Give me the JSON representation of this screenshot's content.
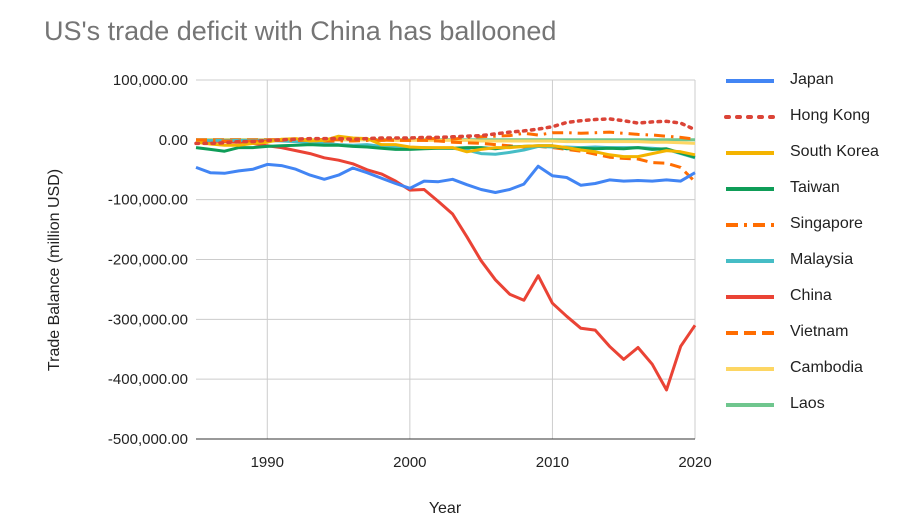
{
  "chart_data": {
    "type": "line",
    "title": "US's trade deficit with China has ballooned",
    "xlabel": "Year",
    "ylabel": "Trade Balance (million USD)",
    "xlim": [
      1985,
      2020
    ],
    "ylim": [
      -500000,
      100000
    ],
    "x_ticks": [
      1990,
      2000,
      2010,
      2020
    ],
    "x_tick_labels": [
      "1990",
      "2000",
      "2010",
      "2020"
    ],
    "y_ticks": [
      100000,
      0,
      -100000,
      -200000,
      -300000,
      -400000,
      -500000
    ],
    "y_tick_labels": [
      "100,000.00",
      "0.00",
      "-100,000.00",
      "-200,000.00",
      "-300,000.00",
      "-400,000.00",
      "-500,000.00"
    ],
    "grid": true,
    "legend_position": "right",
    "x": [
      1985,
      1986,
      1987,
      1988,
      1989,
      1990,
      1991,
      1992,
      1993,
      1994,
      1995,
      1996,
      1997,
      1998,
      1999,
      2000,
      2001,
      2002,
      2003,
      2004,
      2005,
      2006,
      2007,
      2008,
      2009,
      2010,
      2011,
      2012,
      2013,
      2014,
      2015,
      2016,
      2017,
      2018,
      2019,
      2020
    ],
    "series": [
      {
        "name": "Japan",
        "color": "#4285f4",
        "style": "solid",
        "values": [
          -46000,
          -55000,
          -56000,
          -52000,
          -49000,
          -41000,
          -43000,
          -49000,
          -59000,
          -66000,
          -59000,
          -47000,
          -55000,
          -64000,
          -73000,
          -81000,
          -69000,
          -70000,
          -66000,
          -75000,
          -83000,
          -88000,
          -83000,
          -74000,
          -44000,
          -60000,
          -63000,
          -76000,
          -73000,
          -67000,
          -69000,
          -68000,
          -69000,
          -67000,
          -69000,
          -55000
        ]
      },
      {
        "name": "Hong Kong",
        "color": "#db4437",
        "style": "dotted",
        "values": [
          -6000,
          -6000,
          -5000,
          -3000,
          -3000,
          -1000,
          0,
          1000,
          2000,
          2000,
          2000,
          1000,
          2000,
          3000,
          3000,
          3000,
          4000,
          4000,
          5000,
          6000,
          7000,
          10000,
          13000,
          15000,
          18000,
          22000,
          29000,
          32000,
          34000,
          35000,
          32000,
          28000,
          30000,
          31000,
          28000,
          17000
        ]
      },
      {
        "name": "South Korea",
        "color": "#f4b400",
        "style": "solid",
        "values": [
          -4000,
          -7000,
          -9000,
          -9000,
          -6000,
          -4000,
          1000,
          2000,
          -2000,
          -1000,
          6000,
          3000,
          2000,
          -8000,
          -8000,
          -12000,
          -13000,
          -13000,
          -13000,
          -20000,
          -16000,
          -13000,
          -13000,
          -11000,
          -10000,
          -10000,
          -13000,
          -17000,
          -20000,
          -25000,
          -28000,
          -28000,
          -23000,
          -18000,
          -20000,
          -25000
        ]
      },
      {
        "name": "Taiwan",
        "color": "#0f9d58",
        "style": "solid",
        "values": [
          -13000,
          -16000,
          -19000,
          -13000,
          -13000,
          -11000,
          -10000,
          -9000,
          -8000,
          -9000,
          -9000,
          -11000,
          -12000,
          -14000,
          -16000,
          -16000,
          -15000,
          -14000,
          -14000,
          -13000,
          -13000,
          -15000,
          -12000,
          -11000,
          -10000,
          -10000,
          -15000,
          -14000,
          -15000,
          -14000,
          -15000,
          -13000,
          -16000,
          -15000,
          -22000,
          -29000
        ]
      },
      {
        "name": "Singapore",
        "color": "#ff6d01",
        "style": "dashdot",
        "values": [
          -1000,
          -1000,
          -2000,
          -2000,
          -2000,
          -2000,
          -1000,
          -1000,
          -1000,
          -2000,
          -2000,
          -2000,
          -1000,
          -1000,
          0,
          -1000,
          2000,
          2000,
          1000,
          4000,
          5000,
          6000,
          7000,
          11000,
          8000,
          12000,
          12000,
          11000,
          12000,
          13000,
          11000,
          9000,
          8000,
          6000,
          4000,
          1000
        ]
      },
      {
        "name": "Malaysia",
        "color": "#46bdc6",
        "style": "solid",
        "values": [
          -1000,
          -1000,
          -1000,
          -1000,
          -1000,
          -1000,
          -2000,
          -3000,
          -4000,
          -6000,
          -8000,
          -9000,
          -8000,
          -11000,
          -12000,
          -15000,
          -13000,
          -14000,
          -14000,
          -17000,
          -23000,
          -24000,
          -21000,
          -17000,
          -11000,
          -12000,
          -12000,
          -13000,
          -12000,
          -13000,
          -13000,
          -13000,
          -14000,
          -16000,
          -23000,
          -30000
        ]
      },
      {
        "name": "China",
        "color": "#ea4335",
        "style": "solid",
        "values": [
          -1000,
          -2000,
          -3000,
          -4000,
          -6000,
          -10000,
          -13000,
          -18000,
          -23000,
          -30000,
          -34000,
          -40000,
          -50000,
          -57000,
          -69000,
          -84000,
          -83000,
          -103000,
          -124000,
          -162000,
          -202000,
          -234000,
          -258000,
          -268000,
          -227000,
          -273000,
          -295000,
          -315000,
          -318000,
          -345000,
          -367000,
          -347000,
          -375000,
          -418000,
          -345000,
          -310000
        ]
      },
      {
        "name": "Vietnam",
        "color": "#ff6d01",
        "style": "dashed",
        "values": [
          0,
          0,
          0,
          0,
          0,
          0,
          0,
          0,
          0,
          0,
          0,
          0,
          0,
          0,
          -1000,
          -1000,
          -1000,
          -2000,
          -4000,
          -5000,
          -6000,
          -8000,
          -10000,
          -12000,
          -11000,
          -13000,
          -16000,
          -19000,
          -24000,
          -29000,
          -31000,
          -32000,
          -38000,
          -39000,
          -46000,
          -70000
        ]
      },
      {
        "name": "Cambodia",
        "color": "#fdd663",
        "style": "solid",
        "values": [
          0,
          0,
          0,
          0,
          0,
          0,
          0,
          0,
          0,
          0,
          0,
          0,
          0,
          -1000,
          -1000,
          -1000,
          -1000,
          -1000,
          -1000,
          -1000,
          -2000,
          -2000,
          -2000,
          -2000,
          -2000,
          -2000,
          -3000,
          -3000,
          -3000,
          -3000,
          -3000,
          -3000,
          -4000,
          -4000,
          -5000,
          -6000
        ]
      },
      {
        "name": "Laos",
        "color": "#6fc68e",
        "style": "solid",
        "values": [
          0,
          0,
          0,
          0,
          0,
          0,
          0,
          0,
          0,
          0,
          0,
          0,
          0,
          0,
          0,
          0,
          0,
          0,
          0,
          0,
          0,
          0,
          0,
          0,
          0,
          0,
          0,
          0,
          0,
          0,
          0,
          0,
          0,
          0,
          0,
          0
        ]
      }
    ]
  }
}
